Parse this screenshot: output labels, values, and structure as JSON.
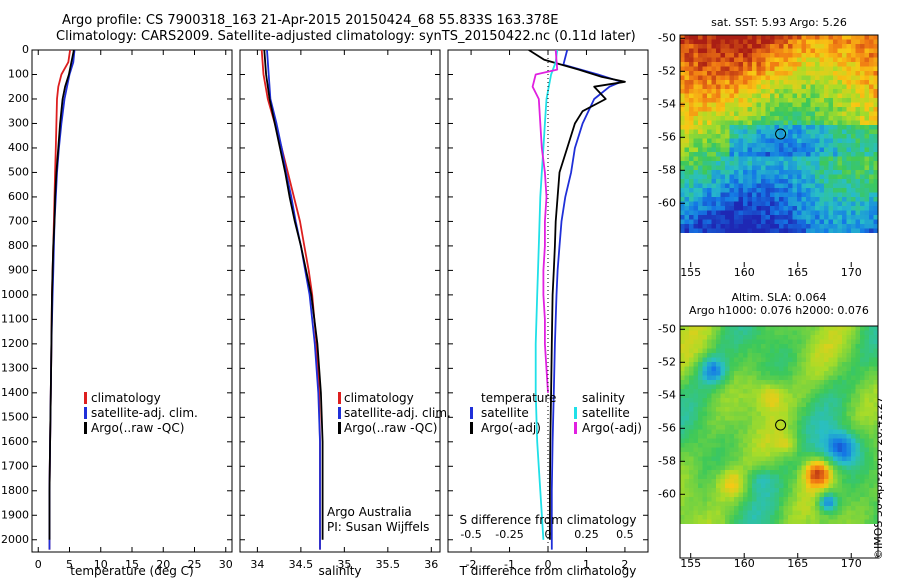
{
  "header": {
    "line1": "Argo profile: CS 7900318_163 21-Apr-2015 20150424_68 55.833S 163.378E",
    "line2": "Climatology: CARS2009. Satellite-adjusted climatology: synTS_20150422.nc (0.11d later)"
  },
  "credit": "©IMOS 30-Apr-2015 20:41:27",
  "colors": {
    "climatology": "#dd1f1f",
    "satellite": "#1f2fd8",
    "argo": "#000000",
    "sat_salinity": "#1fe0e8",
    "argo_salinity": "#e020e0"
  },
  "chart_data": [
    {
      "type": "line",
      "id": "temperature",
      "xlabel": "temperature (deg C)",
      "xlim": [
        -1,
        31
      ],
      "ylim": [
        2050,
        0
      ],
      "xticks": [
        "0",
        "5",
        "10",
        "15",
        "20",
        "25",
        "30"
      ],
      "yticks": [
        "0",
        "100",
        "200",
        "300",
        "400",
        "500",
        "600",
        "700",
        "800",
        "900",
        "1000",
        "1100",
        "1200",
        "1300",
        "1400",
        "1500",
        "1600",
        "1700",
        "1800",
        "1900",
        "2000"
      ],
      "series": [
        {
          "name": "climatology",
          "color": "#dd1f1f",
          "depth": [
            0,
            50,
            100,
            150,
            200,
            300,
            400,
            500,
            600,
            700,
            800,
            900,
            1000,
            1200,
            1400,
            1600,
            1800,
            2000,
            2040
          ],
          "values": [
            5.1,
            4.8,
            3.7,
            3.2,
            3.0,
            2.9,
            2.8,
            2.7,
            2.6,
            2.5,
            2.4,
            2.3,
            2.2,
            2.1,
            2.0,
            1.9,
            1.8,
            1.8,
            1.8
          ]
        },
        {
          "name": "satellite-adj. clim.",
          "color": "#1f2fd8",
          "depth": [
            0,
            50,
            100,
            150,
            200,
            300,
            400,
            500,
            600,
            700,
            800,
            900,
            1000,
            1200,
            1400,
            1600,
            1800,
            2000,
            2040
          ],
          "values": [
            5.8,
            5.6,
            5.0,
            4.6,
            4.2,
            3.7,
            3.3,
            3.0,
            2.8,
            2.6,
            2.5,
            2.4,
            2.3,
            2.1,
            2.0,
            1.9,
            1.8,
            1.8,
            1.8
          ]
        },
        {
          "name": "Argo(..raw -QC)",
          "color": "#000000",
          "depth": [
            0,
            50,
            100,
            150,
            200,
            300,
            400,
            500,
            600,
            700,
            800,
            900,
            1000,
            1200,
            1400,
            1600,
            1800,
            2000
          ],
          "values": [
            5.7,
            5.3,
            4.9,
            4.3,
            3.9,
            3.5,
            3.2,
            2.9,
            2.7,
            2.6,
            2.4,
            2.3,
            2.2,
            2.1,
            2.0,
            1.9,
            1.8,
            1.8
          ]
        }
      ],
      "legend": [
        "climatology",
        "satellite-adj. clim.",
        "Argo(..raw -QC)"
      ]
    },
    {
      "type": "line",
      "id": "salinity",
      "xlabel": "salinity",
      "xlim": [
        33.8,
        36.1
      ],
      "ylim": [
        2050,
        0
      ],
      "xticks": [
        "34",
        "34.5",
        "35",
        "35.5",
        "36"
      ],
      "series": [
        {
          "name": "climatology",
          "color": "#dd1f1f",
          "depth": [
            0,
            100,
            200,
            300,
            400,
            500,
            600,
            700,
            800,
            900,
            1000,
            1200,
            1400,
            1600,
            1800,
            2000,
            2040
          ],
          "values": [
            34.05,
            34.07,
            34.12,
            34.2,
            34.28,
            34.35,
            34.42,
            34.49,
            34.54,
            34.59,
            34.63,
            34.68,
            34.71,
            34.72,
            34.72,
            34.72,
            34.72
          ]
        },
        {
          "name": "satellite-adj. clim.",
          "color": "#1f2fd8",
          "depth": [
            0,
            100,
            200,
            300,
            400,
            500,
            600,
            700,
            800,
            900,
            1000,
            1200,
            1400,
            1600,
            1800,
            2000,
            2040
          ],
          "values": [
            34.11,
            34.13,
            34.15,
            34.22,
            34.28,
            34.33,
            34.39,
            34.44,
            34.5,
            34.55,
            34.6,
            34.66,
            34.7,
            34.72,
            34.72,
            34.72,
            34.72
          ]
        },
        {
          "name": "Argo(..raw -QC)",
          "color": "#000000",
          "depth": [
            0,
            100,
            200,
            300,
            400,
            500,
            600,
            700,
            800,
            900,
            1000,
            1200,
            1400,
            1600,
            1800,
            2000
          ],
          "values": [
            34.08,
            34.1,
            34.14,
            34.2,
            34.26,
            34.32,
            34.37,
            34.43,
            34.5,
            34.56,
            34.62,
            34.69,
            34.73,
            34.75,
            34.75,
            34.75
          ]
        }
      ],
      "legend": [
        "climatology",
        "satellite-adj. clim.",
        "Argo(..raw -QC)"
      ],
      "note1": "Argo Australia",
      "note2": "PI: Susan Wijffels"
    },
    {
      "type": "line",
      "id": "differences",
      "xlabel": "T difference from climatology",
      "xlabel_top": "S difference from climatology",
      "xlim": [
        -2.6,
        2.6
      ],
      "ylim": [
        2050,
        0
      ],
      "xticks_bottom": [
        "-2",
        "-1",
        "0",
        "1",
        "2"
      ],
      "xticks_top": [
        "-0.5",
        "-0.25",
        "0",
        "0.25",
        "0.5"
      ],
      "series": [
        {
          "name": "temperature satellite",
          "color": "#1f2fd8",
          "depth": [
            0,
            60,
            100,
            130,
            150,
            200,
            300,
            400,
            500,
            600,
            700,
            800,
            900,
            1000,
            1200,
            1400,
            1600,
            1800,
            2000,
            2040
          ],
          "values": [
            0.5,
            0.4,
            1.3,
            1.9,
            1.6,
            1.2,
            0.9,
            0.7,
            0.6,
            0.45,
            0.35,
            0.3,
            0.25,
            0.22,
            0.18,
            0.15,
            0.12,
            0.1,
            0.1,
            0.1
          ]
        },
        {
          "name": "temperature Argo(-adj)",
          "color": "#000000",
          "depth": [
            0,
            40,
            80,
            110,
            130,
            150,
            200,
            250,
            300,
            400,
            500,
            600,
            700,
            800,
            900,
            1000,
            1200,
            1400,
            1600,
            1800,
            2000
          ],
          "values": [
            -0.5,
            -0.1,
            0.8,
            1.4,
            2.0,
            1.2,
            1.5,
            0.9,
            0.7,
            0.5,
            0.3,
            0.25,
            0.2,
            0.18,
            0.15,
            0.12,
            0.1,
            0.08,
            0.06,
            0.05,
            0.05
          ]
        },
        {
          "name": "salinity satellite",
          "color": "#1fe0e8",
          "depth": [
            0,
            50,
            100,
            200,
            300,
            400,
            500,
            600,
            800,
            1000,
            1200,
            1400,
            1600,
            1800,
            2000
          ],
          "values": [
            0.06,
            0.05,
            0.02,
            -0.01,
            -0.02,
            -0.03,
            -0.04,
            -0.05,
            -0.06,
            -0.07,
            -0.08,
            -0.08,
            -0.07,
            -0.05,
            -0.03
          ]
        },
        {
          "name": "salinity Argo(-adj)",
          "color": "#e020e0",
          "depth": [
            0,
            80,
            100,
            150,
            200,
            300,
            400,
            500,
            600,
            700,
            800,
            900,
            1000,
            1100,
            1200,
            1400
          ],
          "values": [
            0.05,
            0.06,
            -0.08,
            -0.1,
            -0.06,
            -0.05,
            -0.04,
            -0.02,
            -0.01,
            -0.02,
            -0.02,
            -0.03,
            -0.03,
            -0.02,
            -0.02,
            0.0
          ]
        }
      ],
      "legend_left_title": "temperature",
      "legend_right_title": "salinity",
      "legend_left": [
        "satellite",
        "Argo(-adj)"
      ],
      "legend_right": [
        "satellite",
        "Argo(-adj)"
      ]
    },
    {
      "type": "heatmap",
      "id": "sst-map",
      "title": "sat. SST: 5.93 Argo: 5.26",
      "xlim": [
        154,
        172.5
      ],
      "ylim": [
        -61.8,
        -49.8
      ],
      "xticks": [
        "155",
        "160",
        "165",
        "170"
      ],
      "yticks": [
        "-50",
        "-52",
        "-54",
        "-56",
        "-58",
        "-60"
      ],
      "argo_position": [
        163.4,
        -55.8
      ]
    },
    {
      "type": "heatmap",
      "id": "sla-map",
      "title": "Altim. SLA: 0.064",
      "subtitle": "Argo h1000: 0.076 h2000: 0.076",
      "xlim": [
        154,
        172.5
      ],
      "ylim": [
        -61.8,
        -49.8
      ],
      "xticks": [
        "155",
        "160",
        "165",
        "170"
      ],
      "yticks": [
        "-50",
        "-52",
        "-54",
        "-56",
        "-58",
        "-60"
      ],
      "argo_position": [
        163.4,
        -55.8
      ]
    }
  ]
}
